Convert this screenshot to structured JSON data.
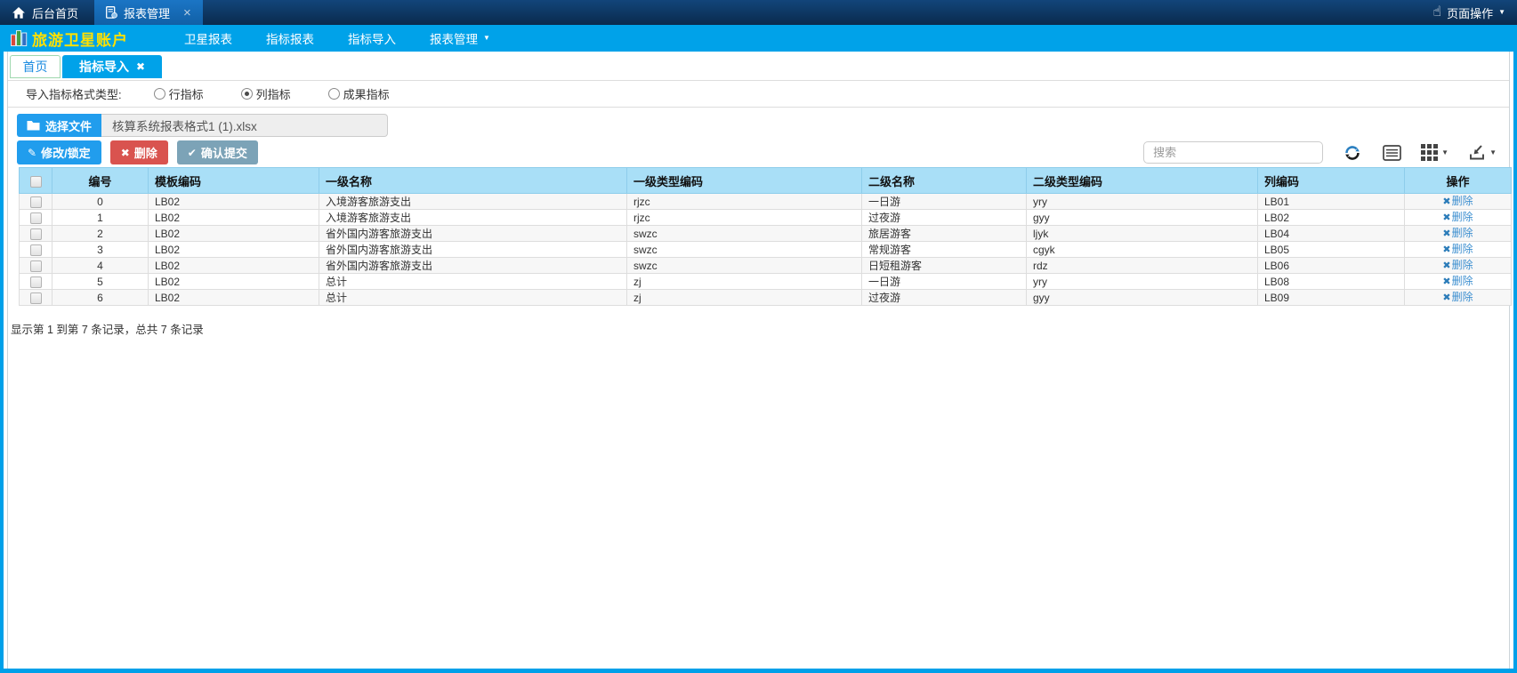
{
  "window_bar": {
    "home_label": "后台首页",
    "tab_label": "报表管理",
    "tab_close_glyph": "×",
    "hand_glyph": "☝",
    "page_actions_label": "页面操作",
    "caret_glyph": "▼"
  },
  "navbar": {
    "brand": "旅游卫星账户",
    "items": [
      {
        "label": "卫星报表"
      },
      {
        "label": "指标报表"
      },
      {
        "label": "指标导入"
      },
      {
        "label": "报表管理"
      }
    ],
    "caret_glyph": "▼"
  },
  "tabs": {
    "home_label": "首页",
    "active_label": "指标导入",
    "close_glyph": "✖"
  },
  "form": {
    "label": "导入指标格式类型:",
    "radios": [
      {
        "label": "行指标",
        "checked": false
      },
      {
        "label": "列指标",
        "checked": true
      },
      {
        "label": "成果指标",
        "checked": false
      }
    ]
  },
  "file_picker": {
    "button_label": "选择文件",
    "filename": "核算系统报表格式1 (1).xlsx"
  },
  "actions": {
    "modify_glyph": "✎",
    "modify_label": "修改/锁定",
    "delete_glyph": "✖",
    "delete_label": "删除",
    "submit_glyph": "✔",
    "submit_label": "确认提交"
  },
  "search": {
    "placeholder": "搜索"
  },
  "toolbar_icons": {
    "refresh": "refresh-icon",
    "detail_view": "detail-view-icon",
    "columns": "columns-icon",
    "export": "export-icon",
    "caret_glyph": "▼"
  },
  "table": {
    "headers": [
      "编号",
      "模板编码",
      "一级名称",
      "一级类型编码",
      "二级名称",
      "二级类型编码",
      "列编码",
      "操作"
    ],
    "rows": [
      [
        "0",
        "LB02",
        "入境游客旅游支出",
        "rjzc",
        "一日游",
        "yry",
        "LB01"
      ],
      [
        "1",
        "LB02",
        "入境游客旅游支出",
        "rjzc",
        "过夜游",
        "gyy",
        "LB02"
      ],
      [
        "2",
        "LB02",
        "省外国内游客旅游支出",
        "swzc",
        "旅居游客",
        "ljyk",
        "LB04"
      ],
      [
        "3",
        "LB02",
        "省外国内游客旅游支出",
        "swzc",
        "常规游客",
        "cgyk",
        "LB05"
      ],
      [
        "4",
        "LB02",
        "省外国内游客旅游支出",
        "swzc",
        "日短租游客",
        "rdz",
        "LB06"
      ],
      [
        "5",
        "LB02",
        "总计",
        "zj",
        "一日游",
        "yry",
        "LB08"
      ],
      [
        "6",
        "LB02",
        "总计",
        "zj",
        "过夜游",
        "gyy",
        "LB09"
      ]
    ],
    "row_action": {
      "glyph": "✖",
      "label": "删除"
    },
    "summary": "显示第 1 到第 7 条记录，总共 7 条记录"
  },
  "colors": {
    "accent_blue": "#00a2e9",
    "topbar_dark": "#0b2f55",
    "topbar_tab_blue": "#1467b2",
    "brand_yellow": "#ffe100",
    "button_blue": "#219ded",
    "button_red": "#d9534f",
    "button_steel": "#7ca3b7",
    "table_header_bg": "#a9dff7",
    "link_blue": "#3d8fd0",
    "stripe_gray": "#f7f7f7"
  }
}
